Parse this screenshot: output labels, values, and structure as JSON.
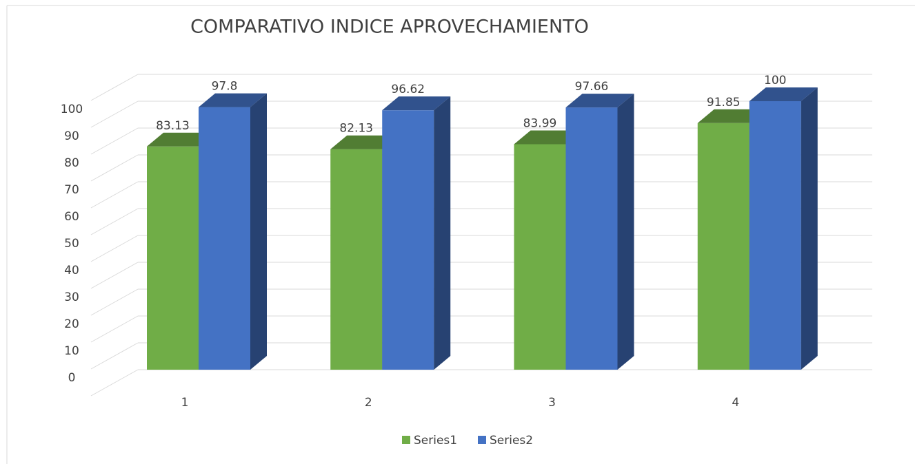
{
  "chart_data": {
    "type": "bar3d",
    "title": "COMPARATIVO INDICE APROVECHAMIENTO",
    "categories": [
      "1",
      "2",
      "3",
      "4"
    ],
    "series": [
      {
        "name": "Series1",
        "color": "#70ad47",
        "values": [
          83.13,
          82.13,
          83.99,
          91.85
        ]
      },
      {
        "name": "Series2",
        "color": "#4472c4",
        "values": [
          97.8,
          96.62,
          97.66,
          100
        ]
      }
    ],
    "ylim": [
      0,
      110
    ],
    "yticks": [
      0,
      10,
      20,
      30,
      40,
      50,
      60,
      70,
      80,
      90,
      100
    ],
    "grid": true,
    "legend": "bottom"
  }
}
